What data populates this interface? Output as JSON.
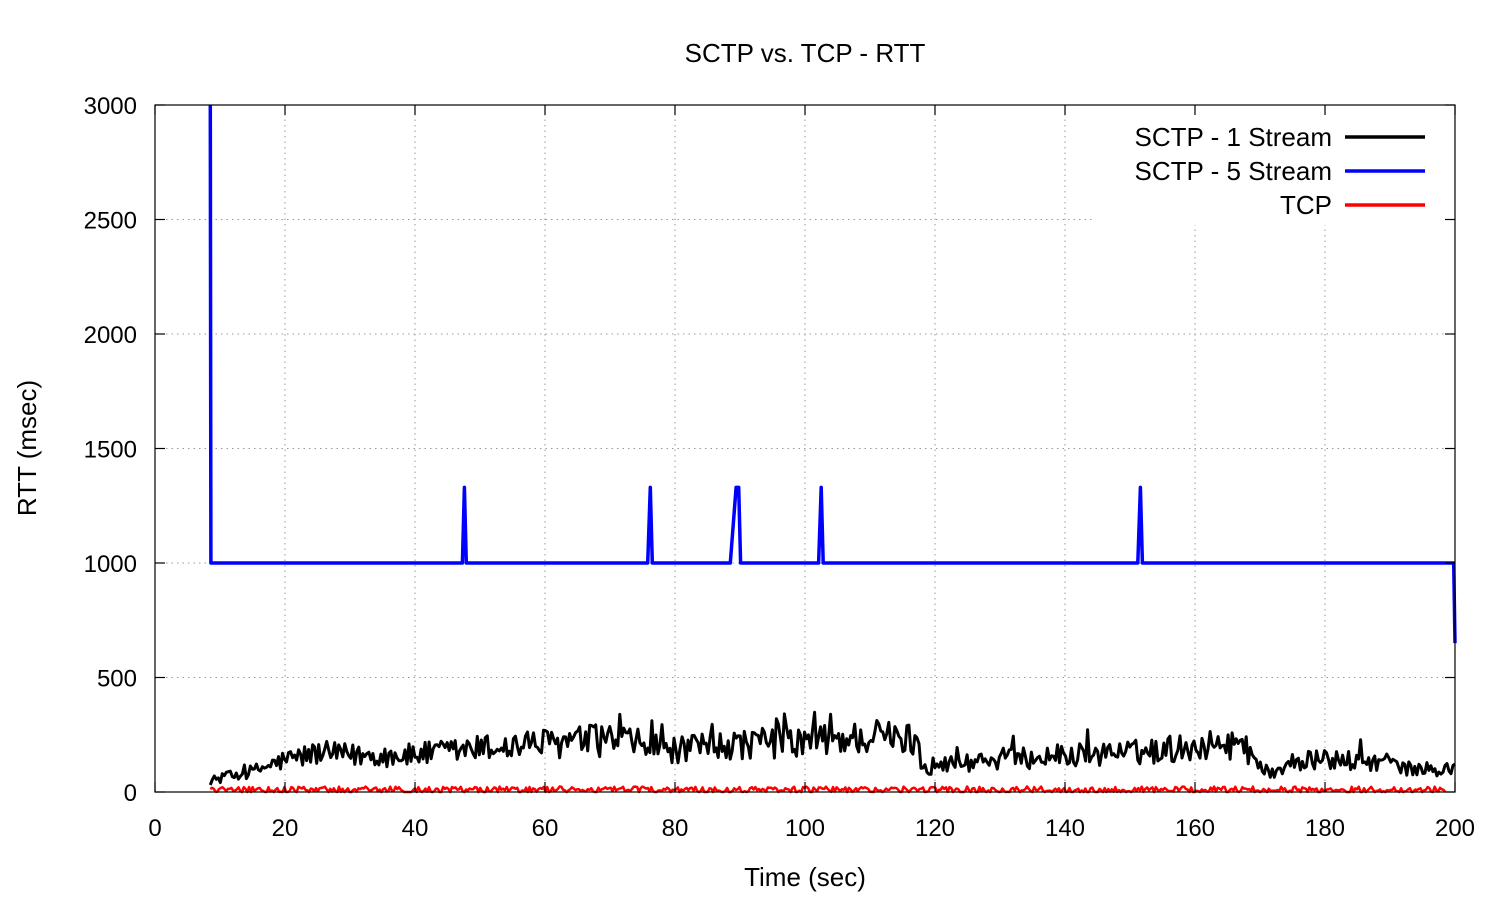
{
  "chart_data": {
    "type": "line",
    "title": "SCTP vs. TCP - RTT",
    "xlabel": "Time (sec)",
    "ylabel": "RTT (msec)",
    "xlim": [
      0,
      200
    ],
    "ylim": [
      0,
      3000
    ],
    "xticks": [
      0,
      20,
      40,
      60,
      80,
      100,
      120,
      140,
      160,
      180,
      200
    ],
    "yticks": [
      0,
      500,
      1000,
      1500,
      2000,
      2500,
      3000
    ],
    "grid": true,
    "legend_position": "top-right",
    "series": [
      {
        "name": "SCTP - 1 Stream",
        "color": "#000000",
        "x_range": [
          8.5,
          200
        ],
        "trend": [
          [
            8.5,
            50
          ],
          [
            15,
            90
          ],
          [
            20,
            140
          ],
          [
            25,
            170
          ],
          [
            30,
            160
          ],
          [
            40,
            160
          ],
          [
            50,
            190
          ],
          [
            60,
            210
          ],
          [
            70,
            230
          ],
          [
            80,
            180
          ],
          [
            90,
            210
          ],
          [
            100,
            220
          ],
          [
            110,
            240
          ],
          [
            117,
            230
          ],
          [
            118,
            110
          ],
          [
            125,
            130
          ],
          [
            140,
            160
          ],
          [
            150,
            170
          ],
          [
            160,
            200
          ],
          [
            167,
            210
          ],
          [
            172,
            60
          ],
          [
            174,
            130
          ],
          [
            180,
            140
          ],
          [
            190,
            130
          ],
          [
            192,
            100
          ],
          [
            200,
            100
          ]
        ]
      },
      {
        "name": "SCTP - 5 Stream",
        "color": "#0000ff",
        "points": [
          [
            8.5,
            3000
          ],
          [
            8.6,
            1000
          ],
          [
            47.3,
            1000
          ],
          [
            47.6,
            1330
          ],
          [
            47.9,
            1000
          ],
          [
            75.8,
            1000
          ],
          [
            76.2,
            1330
          ],
          [
            76.5,
            1000
          ],
          [
            88.5,
            1000
          ],
          [
            89.4,
            1330
          ],
          [
            89.8,
            1330
          ],
          [
            90.1,
            1000
          ],
          [
            102.1,
            1000
          ],
          [
            102.5,
            1330
          ],
          [
            102.8,
            1000
          ],
          [
            151.2,
            1000
          ],
          [
            151.6,
            1330
          ],
          [
            151.9,
            1000
          ],
          [
            199.8,
            1000
          ],
          [
            200,
            650
          ]
        ]
      },
      {
        "name": "TCP",
        "color": "#ff0000",
        "x_range": [
          8.5,
          198.5
        ],
        "trend": [
          [
            8.5,
            10
          ],
          [
            198.5,
            10
          ]
        ]
      }
    ]
  }
}
